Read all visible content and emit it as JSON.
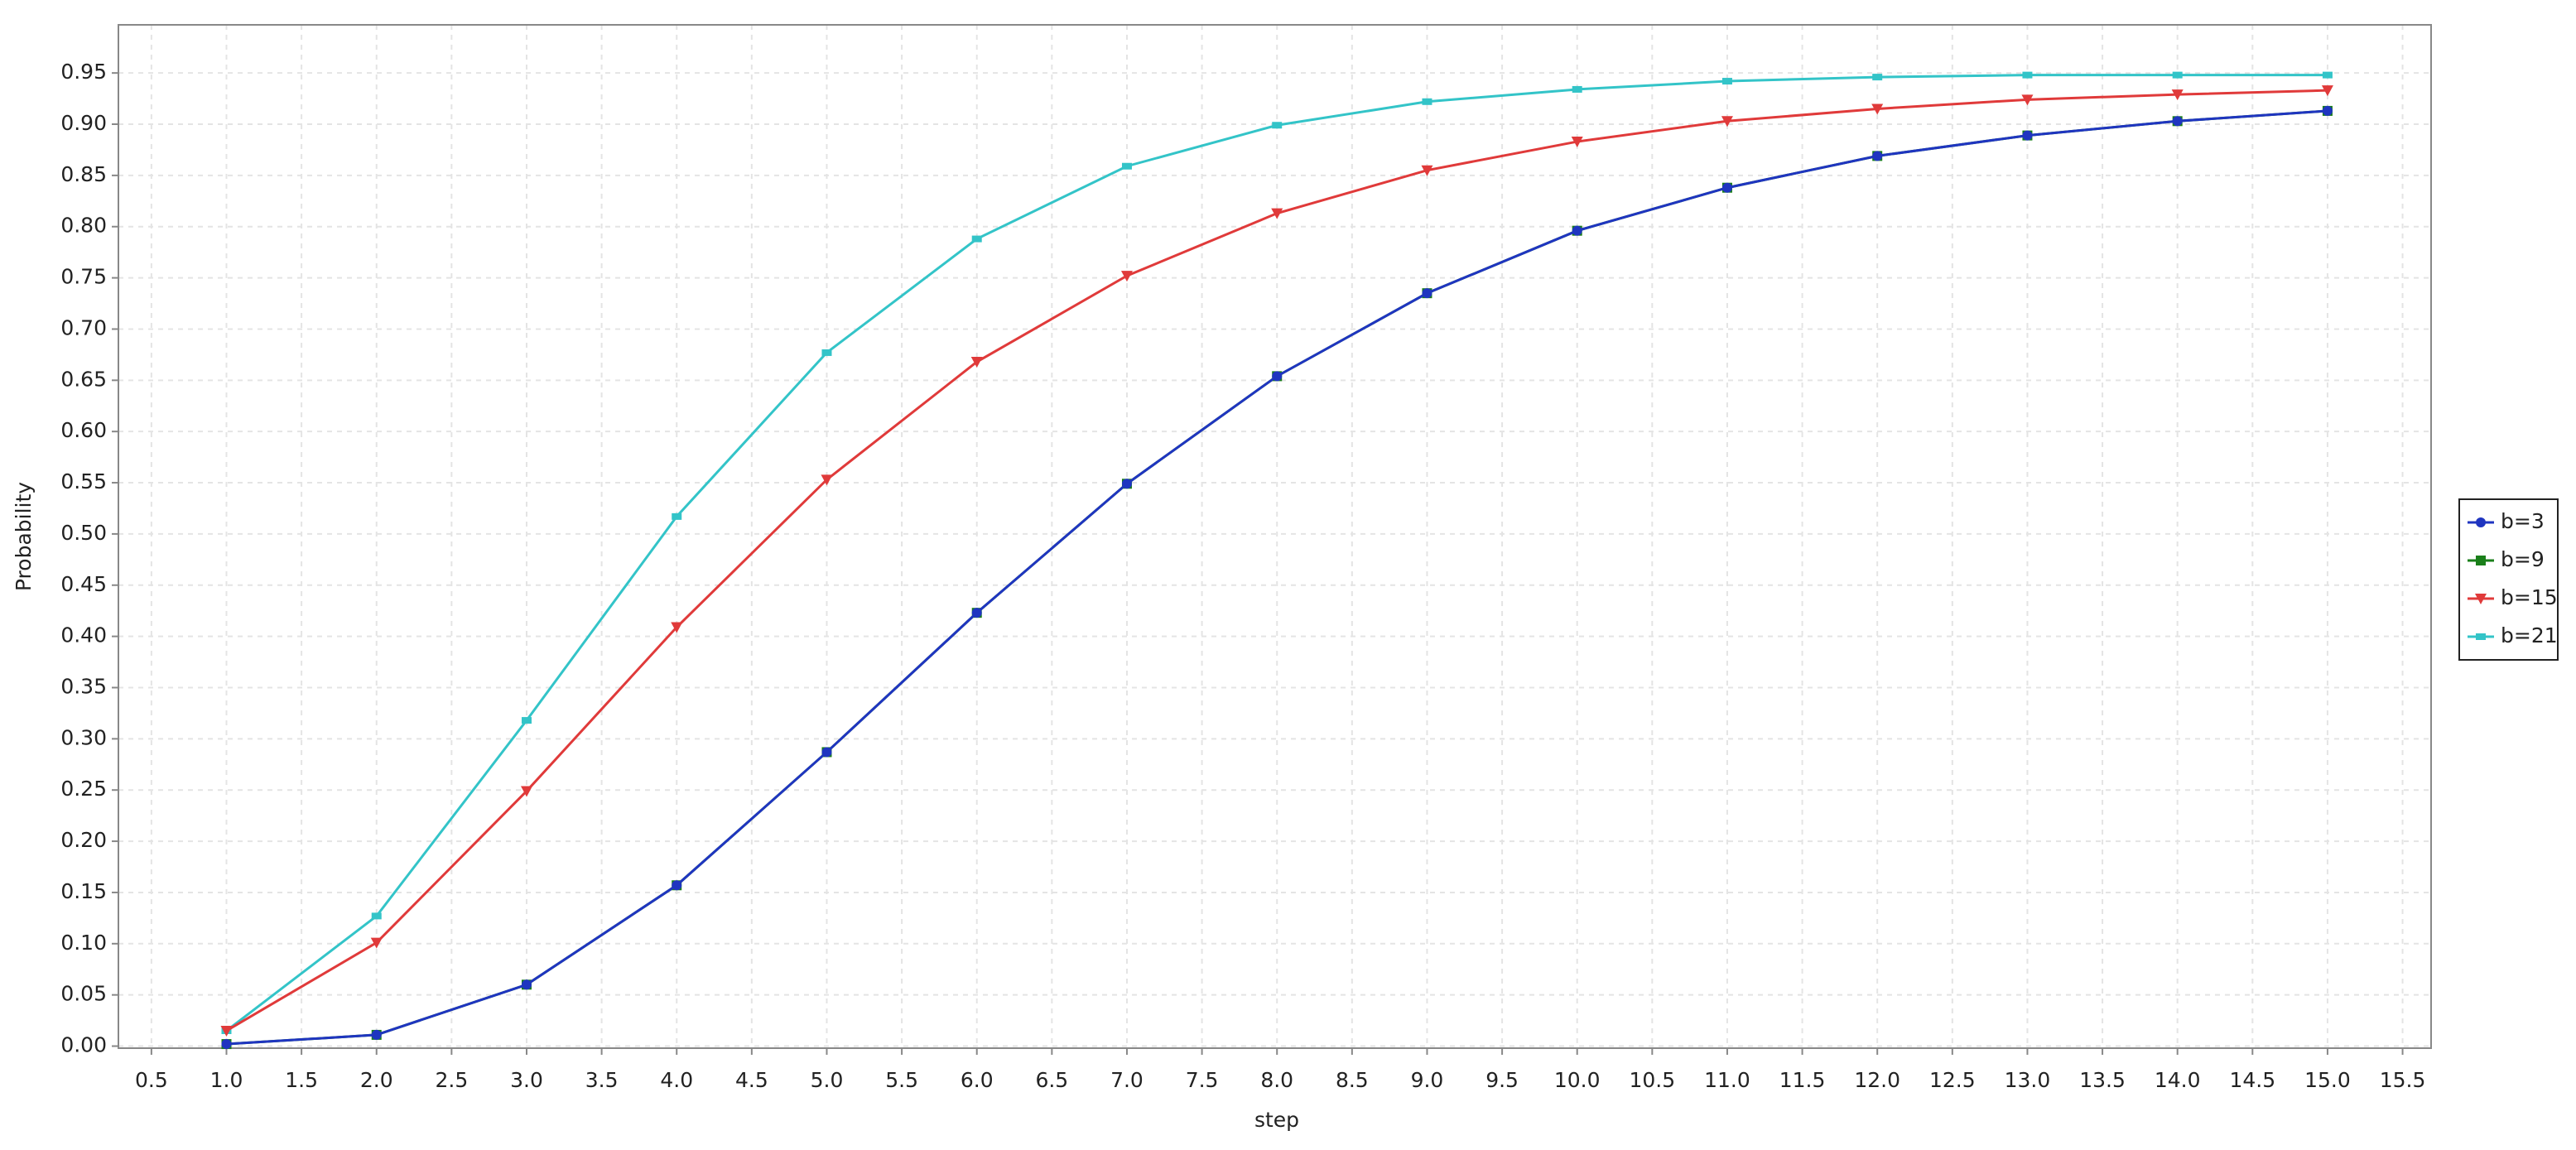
{
  "chart_data": {
    "type": "line",
    "x_label": "step",
    "y_label": "Probability",
    "x": [
      1,
      2,
      3,
      4,
      5,
      6,
      7,
      8,
      9,
      10,
      11,
      12,
      13,
      14,
      15
    ],
    "series": [
      {
        "name": "b=3",
        "color": "#1f35c0",
        "marker": "circle",
        "values": [
          0.002,
          0.011,
          0.06,
          0.157,
          0.287,
          0.423,
          0.549,
          0.654,
          0.735,
          0.796,
          0.838,
          0.869,
          0.889,
          0.903,
          0.913
        ]
      },
      {
        "name": "b=9",
        "color": "#1a7f1a",
        "marker": "square",
        "values": [
          0.002,
          0.011,
          0.06,
          0.157,
          0.287,
          0.423,
          0.549,
          0.654,
          0.735,
          0.796,
          0.838,
          0.869,
          0.889,
          0.903,
          0.913
        ]
      },
      {
        "name": "b=15",
        "color": "#e03a3a",
        "marker": "triangle-down",
        "values": [
          0.015,
          0.101,
          0.249,
          0.409,
          0.553,
          0.668,
          0.752,
          0.813,
          0.855,
          0.883,
          0.903,
          0.915,
          0.924,
          0.929,
          0.933
        ]
      },
      {
        "name": "b=21",
        "color": "#33c4c8",
        "marker": "rect",
        "values": [
          0.015,
          0.127,
          0.318,
          0.517,
          0.677,
          0.788,
          0.859,
          0.899,
          0.922,
          0.934,
          0.942,
          0.946,
          0.948,
          0.948,
          0.948
        ]
      }
    ],
    "xlim": [
      0.28,
      15.69
    ],
    "ylim": [
      -0.002,
      0.997
    ],
    "xticks": [
      0.5,
      {
        "value": 1,
        "label": "1.0"
      },
      1.5,
      {
        "value": 2,
        "label": "2.0"
      },
      2.5,
      {
        "value": 3,
        "label": "3.0"
      },
      3.5,
      {
        "value": 4,
        "label": "4.0"
      },
      4.5,
      {
        "value": 5,
        "label": "5.0"
      },
      5.5,
      {
        "value": 6,
        "label": "6.0"
      },
      6.5,
      {
        "value": 7,
        "label": "7.0"
      },
      7.5,
      {
        "value": 8,
        "label": "8.0"
      },
      8.5,
      {
        "value": 9,
        "label": "9.0"
      },
      9.5,
      {
        "value": 10,
        "label": "10.0"
      },
      10.5,
      {
        "value": 11,
        "label": "11.0"
      },
      11.5,
      {
        "value": 12,
        "label": "12.0"
      },
      12.5,
      {
        "value": 13,
        "label": "13.0"
      },
      13.5,
      {
        "value": 14,
        "label": "14.0"
      },
      14.5,
      {
        "value": 15,
        "label": "15.0"
      },
      15.5
    ],
    "yticks": [
      {
        "value": 0,
        "label": "0.00"
      },
      {
        "value": 0.05,
        "label": "0.05"
      },
      {
        "value": 0.1,
        "label": "0.10"
      },
      {
        "value": 0.15,
        "label": "0.15"
      },
      {
        "value": 0.2,
        "label": "0.20"
      },
      {
        "value": 0.25,
        "label": "0.25"
      },
      {
        "value": 0.3,
        "label": "0.30"
      },
      {
        "value": 0.35,
        "label": "0.35"
      },
      {
        "value": 0.4,
        "label": "0.40"
      },
      {
        "value": 0.45,
        "label": "0.45"
      },
      {
        "value": 0.5,
        "label": "0.50"
      },
      {
        "value": 0.55,
        "label": "0.55"
      },
      {
        "value": 0.6,
        "label": "0.60"
      },
      {
        "value": 0.65,
        "label": "0.65"
      },
      {
        "value": 0.7,
        "label": "0.70"
      },
      {
        "value": 0.75,
        "label": "0.75"
      },
      {
        "value": 0.8,
        "label": "0.80"
      },
      {
        "value": 0.85,
        "label": "0.85"
      },
      {
        "value": 0.9,
        "label": "0.90"
      },
      {
        "value": 0.95,
        "label": "0.95"
      }
    ],
    "grid": true,
    "legend": "right"
  }
}
